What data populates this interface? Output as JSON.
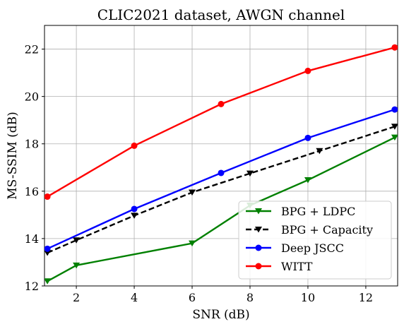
{
  "chart_data": {
    "type": "line",
    "title": "CLIC2021 dataset, AWGN channel",
    "xlabel": "SNR (dB)",
    "ylabel": "MS-SSIM (dB)",
    "xlim": [
      0.9,
      13.1
    ],
    "ylim": [
      12,
      23
    ],
    "xticks": [
      2,
      4,
      6,
      8,
      10,
      12
    ],
    "yticks": [
      12,
      14,
      16,
      18,
      20,
      22
    ],
    "grid": true,
    "legend_position": "lower-right",
    "series": [
      {
        "name": "BPG + LDPC",
        "color": "#008000",
        "style": "solid",
        "marker": "triangle-down",
        "x": [
          1,
          2,
          6,
          8,
          10,
          13
        ],
        "y": [
          12.2,
          12.87,
          13.8,
          15.4,
          16.47,
          18.27
        ]
      },
      {
        "name": "BPG + Capacity",
        "color": "#000000",
        "style": "dashed",
        "marker": "triangle-down",
        "x": [
          1,
          2,
          4,
          6,
          8,
          10.4,
          13
        ],
        "y": [
          13.4,
          13.93,
          14.97,
          15.95,
          16.75,
          17.7,
          18.73
        ]
      },
      {
        "name": "Deep JSCC",
        "color": "#0000ff",
        "style": "solid",
        "marker": "circle",
        "x": [
          1,
          4,
          7,
          10,
          13
        ],
        "y": [
          13.57,
          15.25,
          16.77,
          18.25,
          19.45
        ]
      },
      {
        "name": "WITT",
        "color": "#ff0000",
        "style": "solid",
        "marker": "circle",
        "x": [
          1,
          4,
          7,
          10,
          13
        ],
        "y": [
          15.77,
          17.92,
          19.68,
          21.08,
          22.07
        ]
      }
    ]
  }
}
